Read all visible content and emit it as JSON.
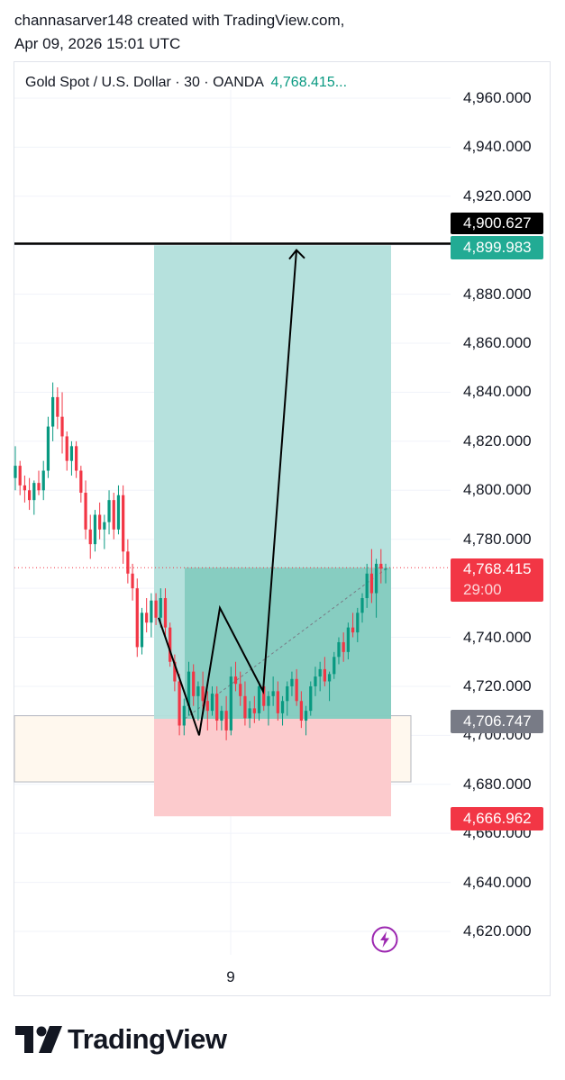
{
  "header": {
    "line1": "channasarver148 created with TradingView.com,",
    "line2": "Apr 09, 2026 15:01 UTC"
  },
  "legend": {
    "symbol": "Gold Spot / U.S. Dollar · 30 · OANDA",
    "price": "4,768.415..."
  },
  "colors": {
    "up": "#089981",
    "down": "#f23645",
    "target_zone": "#b2dfdb",
    "stop_zone": "#fccbcd",
    "demand_zone": "#fff8ee",
    "current_price": "#f23645",
    "black_label": "#000000",
    "green_label": "#22ab94",
    "gray_label": "#787b86"
  },
  "price_labels": {
    "black_line": "4,900.627",
    "target": "4,899.983",
    "current": "4,768.415",
    "countdown": "29:00",
    "entry": "4,706.747",
    "stop": "4,666.962"
  },
  "x_axis": {
    "label": "9"
  },
  "logo": {
    "text": "TradingView"
  },
  "chart_data": {
    "type": "candlestick",
    "title": "Gold Spot / U.S. Dollar · 30 · OANDA",
    "y_ticks": [
      "4,960.000",
      "4,940.000",
      "4,920.000",
      "4,900.000",
      "4,880.000",
      "4,860.000",
      "4,840.000",
      "4,820.000",
      "4,800.000",
      "4,780.000",
      "4,760.000",
      "4,740.000",
      "4,720.000",
      "4,700.000",
      "4,680.000",
      "4,660.000",
      "4,640.000",
      "4,620.000"
    ],
    "y_tick_values": [
      4960,
      4940,
      4920,
      4900,
      4880,
      4860,
      4840,
      4820,
      4800,
      4780,
      4760,
      4740,
      4720,
      4700,
      4680,
      4660,
      4640,
      4620
    ],
    "ylim": [
      4606,
      4992
    ],
    "x_label": "9",
    "bar_count": 90,
    "candles": [
      [
        4805,
        4818,
        4800,
        4810
      ],
      [
        4810,
        4812,
        4798,
        4802
      ],
      [
        4802,
        4806,
        4795,
        4800
      ],
      [
        4800,
        4805,
        4792,
        4796
      ],
      [
        4796,
        4804,
        4790,
        4803
      ],
      [
        4803,
        4808,
        4798,
        4800
      ],
      [
        4800,
        4812,
        4796,
        4808
      ],
      [
        4808,
        4830,
        4805,
        4826
      ],
      [
        4826,
        4844,
        4820,
        4838
      ],
      [
        4838,
        4842,
        4825,
        4830
      ],
      [
        4830,
        4840,
        4815,
        4822
      ],
      [
        4822,
        4824,
        4808,
        4812
      ],
      [
        4812,
        4820,
        4806,
        4818
      ],
      [
        4818,
        4820,
        4805,
        4808
      ],
      [
        4808,
        4810,
        4795,
        4799
      ],
      [
        4799,
        4804,
        4780,
        4784
      ],
      [
        4784,
        4790,
        4772,
        4778
      ],
      [
        4778,
        4792,
        4775,
        4790
      ],
      [
        4790,
        4795,
        4780,
        4784
      ],
      [
        4784,
        4790,
        4776,
        4787
      ],
      [
        4787,
        4800,
        4782,
        4796
      ],
      [
        4796,
        4799,
        4780,
        4784
      ],
      [
        4784,
        4802,
        4782,
        4798
      ],
      [
        4798,
        4802,
        4770,
        4775
      ],
      [
        4775,
        4780,
        4762,
        4766
      ],
      [
        4766,
        4770,
        4755,
        4760
      ],
      [
        4760,
        4764,
        4732,
        4736
      ],
      [
        4736,
        4752,
        4733,
        4750
      ],
      [
        4750,
        4756,
        4742,
        4746
      ],
      [
        4746,
        4758,
        4740,
        4755
      ],
      [
        4755,
        4758,
        4745,
        4748
      ],
      [
        4748,
        4760,
        4744,
        4756
      ],
      [
        4756,
        4760,
        4740,
        4744
      ],
      [
        4744,
        4746,
        4728,
        4730
      ],
      [
        4730,
        4733,
        4718,
        4722
      ],
      [
        4722,
        4725,
        4700,
        4704
      ],
      [
        4704,
        4715,
        4700,
        4712
      ],
      [
        4712,
        4730,
        4708,
        4726
      ],
      [
        4726,
        4729,
        4712,
        4716
      ],
      [
        4716,
        4722,
        4706,
        4720
      ],
      [
        4720,
        4726,
        4710,
        4714
      ],
      [
        4714,
        4718,
        4702,
        4710
      ],
      [
        4710,
        4720,
        4708,
        4717
      ],
      [
        4717,
        4720,
        4702,
        4706
      ],
      [
        4706,
        4712,
        4702,
        4710
      ],
      [
        4710,
        4716,
        4698,
        4702
      ],
      [
        4702,
        4728,
        4700,
        4724
      ],
      [
        4724,
        4730,
        4718,
        4721
      ],
      [
        4721,
        4726,
        4712,
        4716
      ],
      [
        4716,
        4722,
        4704,
        4707
      ],
      [
        4707,
        4714,
        4703,
        4711
      ],
      [
        4711,
        4716,
        4705,
        4709
      ],
      [
        4709,
        4722,
        4706,
        4720
      ],
      [
        4720,
        4724,
        4710,
        4712
      ],
      [
        4712,
        4718,
        4704,
        4716
      ],
      [
        4716,
        4724,
        4712,
        4718
      ],
      [
        4718,
        4722,
        4706,
        4709
      ],
      [
        4709,
        4716,
        4704,
        4714
      ],
      [
        4714,
        4722,
        4708,
        4720
      ],
      [
        4720,
        4726,
        4716,
        4723
      ],
      [
        4723,
        4727,
        4712,
        4714
      ],
      [
        4714,
        4718,
        4703,
        4706
      ],
      [
        4706,
        4712,
        4700,
        4710
      ],
      [
        4710,
        4722,
        4708,
        4720
      ],
      [
        4720,
        4728,
        4716,
        4724
      ],
      [
        4724,
        4730,
        4718,
        4727
      ],
      [
        4727,
        4732,
        4720,
        4722
      ],
      [
        4722,
        4726,
        4714,
        4725
      ],
      [
        4725,
        4734,
        4723,
        4732
      ],
      [
        4732,
        4740,
        4729,
        4738
      ],
      [
        4738,
        4742,
        4730,
        4734
      ],
      [
        4734,
        4746,
        4731,
        4744
      ],
      [
        4744,
        4750,
        4740,
        4742
      ],
      [
        4742,
        4752,
        4738,
        4750
      ],
      [
        4750,
        4758,
        4746,
        4756
      ],
      [
        4756,
        4770,
        4752,
        4766
      ],
      [
        4766,
        4776,
        4754,
        4758
      ],
      [
        4758,
        4772,
        4748,
        4770
      ],
      [
        4770,
        4776,
        4762,
        4768
      ],
      [
        4768,
        4770,
        4762,
        4768
      ]
    ],
    "candle_x_start": 0,
    "position": {
      "entry": 4706.747,
      "target": 4899.983,
      "stop": 4666.962
    },
    "horizontal_line": 4900.627,
    "current_price": 4768.415,
    "demand_zone": [
      4681,
      4708
    ],
    "drawn_path": [
      [
        4748
      ],
      [
        4700
      ],
      [
        4752
      ],
      [
        4718
      ],
      [
        4898
      ]
    ]
  }
}
